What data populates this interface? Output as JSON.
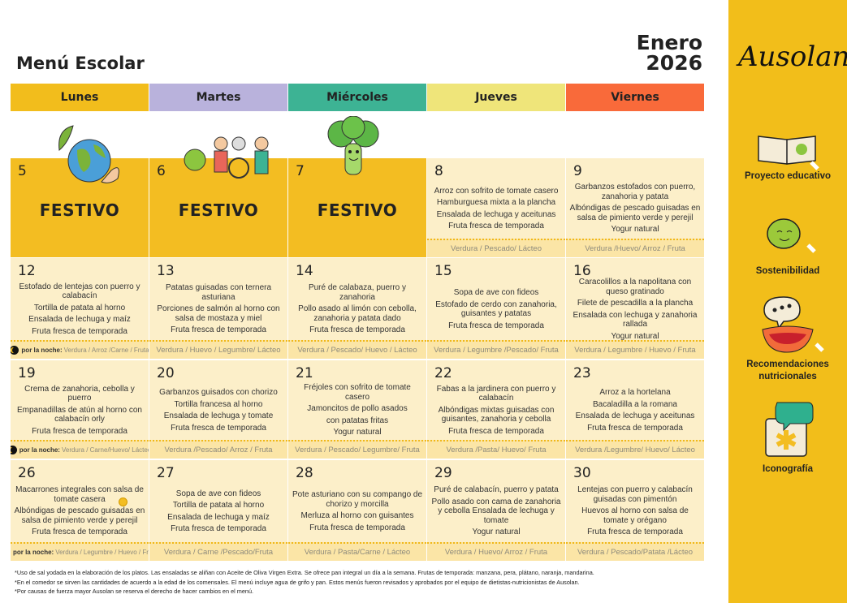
{
  "header": {
    "title": "Menú Escolar",
    "month": "Enero",
    "year": "2026"
  },
  "days": [
    {
      "label": "Lunes",
      "color": "#f2bd1c"
    },
    {
      "label": "Martes",
      "color": "#b9b2dc"
    },
    {
      "label": "Miércoles",
      "color": "#3db394"
    },
    {
      "label": "Jueves",
      "color": "#efe57a"
    },
    {
      "label": "Viernes",
      "color": "#f96a3a"
    }
  ],
  "night_label": "por la noche:",
  "weeks": [
    [
      {
        "day": "5",
        "festivo": "FESTIVO"
      },
      {
        "day": "6",
        "festivo": "FESTIVO"
      },
      {
        "day": "7",
        "festivo": "FESTIVO"
      },
      {
        "day": "8",
        "items": [
          "Arroz con sofrito de tomate casero",
          "Hamburguesa mixta a la plancha",
          "Ensalada de lechuga y aceitunas",
          "Fruta fresca de temporada"
        ],
        "foot": "Verdura / Pescado/ Lácteo"
      },
      {
        "day": "9",
        "items": [
          "Garbanzos estofados con puerro, zanahoria y patata",
          "Albóndigas de pescado guisadas en salsa de pimiento verde y perejil",
          "Yogur natural"
        ],
        "foot": "Verdura /Huevo/ Arroz / Fruta"
      }
    ],
    [
      {
        "day": "12",
        "items": [
          "Estofado de lentejas con puerro y calabacín",
          "Tortilla de patata al horno",
          "Ensalada de lechuga y maíz",
          "Fruta fresca de temporada"
        ],
        "night": "Verdura / Arroz /Carne / Fruta"
      },
      {
        "day": "13",
        "items": [
          "Patatas guisadas con ternera asturiana",
          "Porciones de salmón al horno con salsa de mostaza y miel",
          "Fruta fresca de temporada"
        ],
        "foot": "Verdura / Huevo / Legumbre/ Lácteo"
      },
      {
        "day": "14",
        "items": [
          "Puré de calabaza, puerro y zanahoria",
          "Pollo asado al limón con cebolla, zanahoria y patata dado",
          "Fruta fresca de temporada"
        ],
        "foot": "Verdura / Pescado/ Huevo / Lácteo"
      },
      {
        "day": "15",
        "items": [
          "Sopa de ave con fideos",
          "Estofado de cerdo con zanahoria, guisantes y patatas",
          "Fruta fresca de temporada"
        ],
        "foot": "Verdura / Legumbre /Pescado/ Fruta"
      },
      {
        "day": "16",
        "items": [
          "Caracolillos a la napolitana con queso gratinado",
          "Filete de pescadilla a la plancha",
          "Ensalada con lechuga y zanahoria rallada",
          "Yogur natural"
        ],
        "foot": "Verdura / Legumbre / Huevo / Fruta"
      }
    ],
    [
      {
        "day": "19",
        "items": [
          "Crema de zanahoria, cebolla y puerro",
          "Empanadillas de atún al horno con calabacín orly",
          "Fruta fresca de temporada"
        ],
        "night": "Verdura / Carne/Huevo/ Lácteo"
      },
      {
        "day": "20",
        "items": [
          "Garbanzos guisados con chorizo",
          "Tortilla francesa al horno",
          "Ensalada de lechuga y tomate",
          "Fruta fresca de temporada"
        ],
        "foot": "Verdura /Pescado/ Arroz / Fruta"
      },
      {
        "day": "21",
        "items": [
          "Fréjoles con sofrito de tomate casero",
          "Jamoncitos de pollo asados",
          "con patatas fritas",
          "Yogur natural"
        ],
        "foot": "Verdura / Pescado/ Legumbre/ Fruta"
      },
      {
        "day": "22",
        "items": [
          "Fabas a la jardinera con puerro y calabacín",
          "Albóndigas mixtas guisadas con guisantes, zanahoria y cebolla",
          "Fruta fresca de temporada"
        ],
        "foot": "Verdura /Pasta/ Huevo/ Fruta"
      },
      {
        "day": "23",
        "items": [
          "Arroz a la hortelana",
          "Bacaladilla a la romana",
          "Ensalada de lechuga y aceitunas",
          "Fruta fresca de temporada"
        ],
        "foot": "Verdura /Legumbre/ Huevo/ Lácteo"
      }
    ],
    [
      {
        "day": "26",
        "items": [
          "Macarrones integrales con salsa de tomate casera",
          "Albóndigas de pescado guisadas en salsa de pimiento verde y perejil",
          "Fruta fresca de temporada"
        ],
        "night": "Verdura / Legumbre / Huevo / Fruta"
      },
      {
        "day": "27",
        "items": [
          "Sopa de ave con fideos",
          "Tortilla de patata al horno",
          "Ensalada de lechuga y maíz",
          "Fruta fresca de temporada"
        ],
        "foot": "Verdura / Carne /Pescado/Fruta"
      },
      {
        "day": "28",
        "items": [
          "Pote asturiano con su compango de chorizo y morcilla",
          "Merluza al horno con guisantes",
          "Fruta fresca de temporada"
        ],
        "foot": "Verdura / Pasta/Carne / Lácteo"
      },
      {
        "day": "29",
        "items": [
          "Puré de calabacín, puerro y patata",
          "Pollo asado con cama de zanahoria y cebolla Ensalada de lechuga y tomate",
          "Yogur natural"
        ],
        "foot": "Verdura / Huevo/ Arroz / Fruta"
      },
      {
        "day": "30",
        "items": [
          "Lentejas con puerro y calabacín guisadas con pimentón",
          "Huevos al horno con salsa de tomate y orégano",
          "Fruta fresca de temporada"
        ],
        "foot": "Verdura / Pescado/Patata /Lácteo"
      }
    ]
  ],
  "sidebar": {
    "logo": "Ausolan.",
    "items": [
      "Proyecto educativo",
      "Sostenibilidad",
      "Recomendaciones nutricionales",
      "Iconografía"
    ]
  },
  "notes": [
    "*Uso de sal yodada en la elaboración de los platos. Las ensaladas se aliñan con Aceite de Oliva Virgen Extra. Se ofrece pan integral un día a la semana. Frutas de temporada: manzana, pera, plátano, naranja, mandarina.",
    "*En el comedor se sirven las cantidades de acuerdo a la edad de los comensales. El menú incluye agua de grifo y pan. Estos menús fueron revisados y aprobados por el equipo de dietistas-nutricionistas de Ausolan.",
    "*Por causas de fuerza mayor Ausolan se reserva el derecho de hacer cambios en el menú."
  ]
}
